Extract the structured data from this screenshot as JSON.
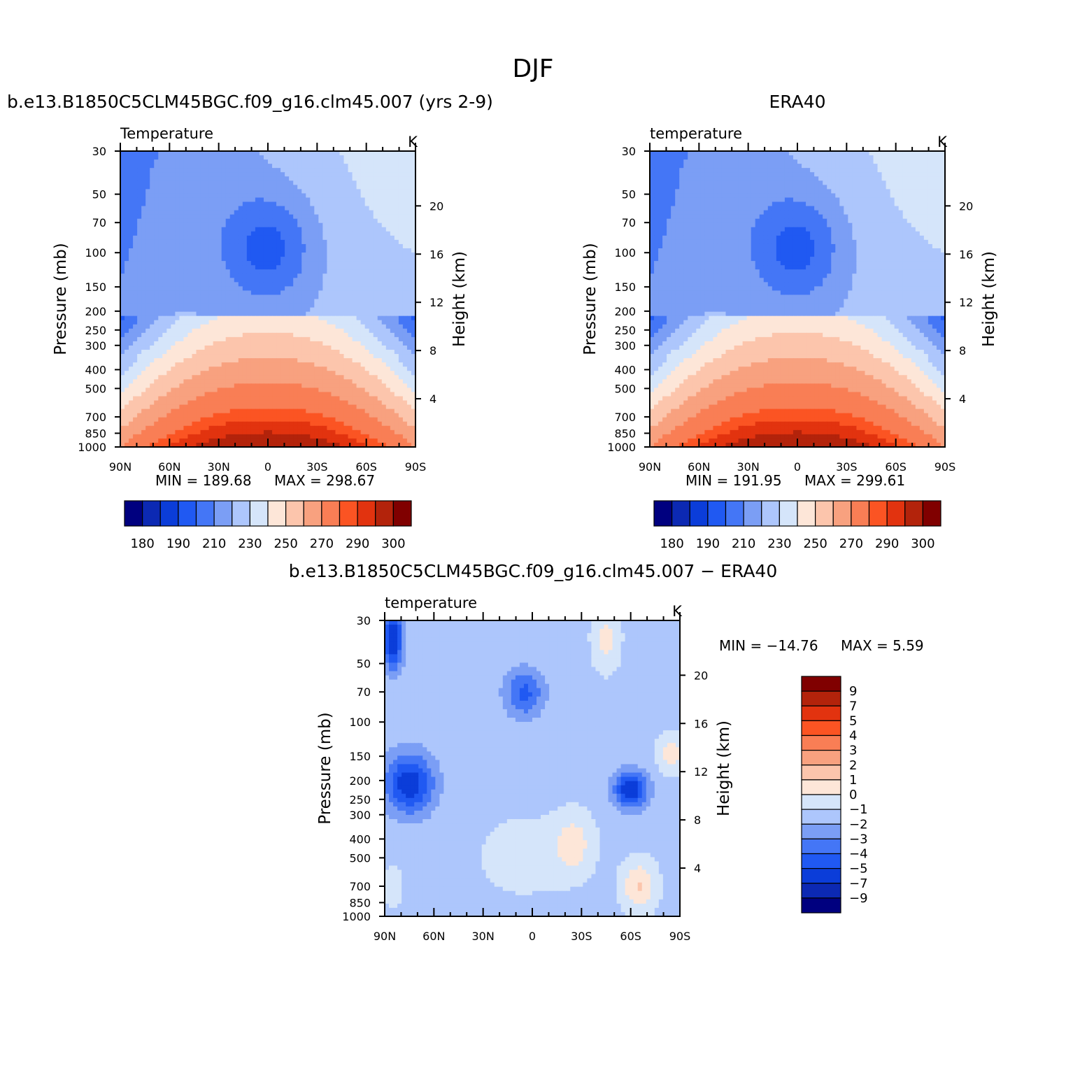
{
  "figure": {
    "title": "DJF",
    "colors": {
      "abs_scale": [
        "#00007f",
        "#0c29b3",
        "#0b3dd9",
        "#2059f2",
        "#4476f6",
        "#7b9ef5",
        "#adc6fc",
        "#d5e5fa",
        "#fde6d8",
        "#fcc5ac",
        "#f8a17f",
        "#f97e55",
        "#fb5423",
        "#e2330f",
        "#b3230b",
        "#800000"
      ],
      "diff_scale": [
        "#00007f",
        "#0c29b3",
        "#0b3dd9",
        "#2059f2",
        "#4476f6",
        "#7b9ef5",
        "#adc6fc",
        "#d5e5fa",
        "#fde6d8",
        "#fcc5ac",
        "#f8a17f",
        "#f97e55",
        "#fb5423",
        "#e2330f",
        "#b3230b",
        "#800000"
      ]
    }
  },
  "chart_data": [
    {
      "type": "heatmap",
      "title": "b.e13.B1850C5CLM45BGC.f09_g16.clm45.007 (yrs 2-9)",
      "variable": "Temperature",
      "units": "K",
      "xlabel": "",
      "ylabel": "Pressure (mb)",
      "ylabel_right": "Height (km)",
      "x_ticks": [
        "90N",
        "60N",
        "30N",
        "0",
        "30S",
        "60S",
        "90S"
      ],
      "y_ticks": [
        30,
        50,
        70,
        100,
        150,
        200,
        250,
        300,
        400,
        500,
        700,
        850,
        1000
      ],
      "y_right_ticks": [
        20,
        16,
        12,
        8,
        4
      ],
      "min_label": "MIN = 189.68",
      "max_label": "MAX = 298.67",
      "min": 189.68,
      "max": 298.67,
      "colorbar_labels": [
        "180",
        "190",
        "210",
        "230",
        "250",
        "270",
        "290",
        "300"
      ]
    },
    {
      "type": "heatmap",
      "title": "ERA40",
      "variable": "temperature",
      "units": "K",
      "xlabel": "",
      "ylabel": "Pressure (mb)",
      "ylabel_right": "Height (km)",
      "x_ticks": [
        "90N",
        "60N",
        "30N",
        "0",
        "30S",
        "60S",
        "90S"
      ],
      "y_ticks": [
        30,
        50,
        70,
        100,
        150,
        200,
        250,
        300,
        400,
        500,
        700,
        850,
        1000
      ],
      "y_right_ticks": [
        20,
        16,
        12,
        8,
        4
      ],
      "min_label": "MIN = 191.95",
      "max_label": "MAX = 299.61",
      "min": 191.95,
      "max": 299.61,
      "colorbar_labels": [
        "180",
        "190",
        "210",
        "230",
        "250",
        "270",
        "290",
        "300"
      ]
    },
    {
      "type": "heatmap",
      "title": "b.e13.B1850C5CLM45BGC.f09_g16.clm45.007 − ERA40",
      "variable": "temperature",
      "units": "K",
      "xlabel": "",
      "ylabel": "Pressure (mb)",
      "ylabel_right": "Height (km)",
      "x_ticks": [
        "90N",
        "60N",
        "30N",
        "0",
        "30S",
        "60S",
        "90S"
      ],
      "y_ticks": [
        30,
        50,
        70,
        100,
        150,
        200,
        250,
        300,
        400,
        500,
        700,
        850,
        1000
      ],
      "y_right_ticks": [
        20,
        16,
        12,
        8,
        4
      ],
      "min_label": "MIN = −14.76",
      "max_label": "MAX = 5.59",
      "min": -14.76,
      "max": 5.59,
      "colorbar_labels": [
        "9",
        "7",
        "5",
        "4",
        "3",
        "2",
        "1",
        "0",
        "−1",
        "−2",
        "−3",
        "−4",
        "−5",
        "−7",
        "−9"
      ]
    }
  ]
}
